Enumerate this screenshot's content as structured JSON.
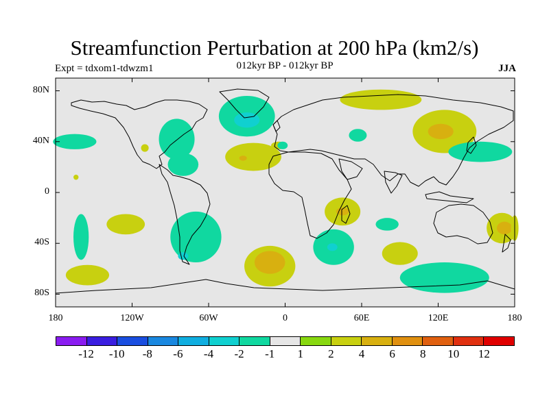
{
  "title": "Streamfunction Perturbation at 200 hPa (km2/s)",
  "left_label": "Expt = tdxom1-tdwzm1",
  "center_label": "012kyr BP - 012kyr BP",
  "right_label": "JJA",
  "chart_data": {
    "type": "contour-map",
    "variable": "Streamfunction Perturbation",
    "level": "200 hPa",
    "units": "km2/s",
    "season": "JJA",
    "lon_range": [
      -180,
      180
    ],
    "lat_range": [
      -90,
      90
    ],
    "x_ticks": [
      {
        "label": "180",
        "lon": -180
      },
      {
        "label": "120W",
        "lon": -120
      },
      {
        "label": "60W",
        "lon": -60
      },
      {
        "label": "0",
        "lon": 0
      },
      {
        "label": "60E",
        "lon": 60
      },
      {
        "label": "120E",
        "lon": 120
      },
      {
        "label": "180",
        "lon": 180
      }
    ],
    "y_ticks": [
      {
        "label": "80N",
        "lat": 80
      },
      {
        "label": "40N",
        "lat": 40
      },
      {
        "label": "0",
        "lat": 0
      },
      {
        "label": "40S",
        "lat": -40
      },
      {
        "label": "80S",
        "lat": -80
      }
    ],
    "colorbar": {
      "levels": [
        "-12",
        "-10",
        "-8",
        "-6",
        "-4",
        "-2",
        "-1",
        "1",
        "2",
        "4",
        "6",
        "8",
        "10",
        "12"
      ],
      "colors": [
        "#8a1cf0",
        "#3a1ee0",
        "#1a4ee0",
        "#1a88e0",
        "#10aee0",
        "#10d0d0",
        "#10d8a0",
        "#e6e6e6",
        "#88d810",
        "#c8d010",
        "#d8b010",
        "#e09010",
        "#e06010",
        "#e03010",
        "#e00000"
      ]
    },
    "features": [
      {
        "name": "north-atlantic-low",
        "lon": -30,
        "lat": 60,
        "rx": 22,
        "ry": 16,
        "level": -2
      },
      {
        "name": "north-atlantic-low-core",
        "lon": -30,
        "lat": 57,
        "rx": 10,
        "ry": 6,
        "level": -4
      },
      {
        "name": "north-america-low",
        "lon": -85,
        "lat": 42,
        "rx": 14,
        "ry": 16,
        "level": -2
      },
      {
        "name": "gulf-of-mexico-low",
        "lon": -80,
        "lat": 22,
        "rx": 12,
        "ry": 9,
        "level": -2
      },
      {
        "name": "north-pacific-low",
        "lon": -165,
        "lat": 40,
        "rx": 17,
        "ry": 6,
        "level": -2
      },
      {
        "name": "atlantic-high",
        "lon": -25,
        "lat": 28,
        "rx": 22,
        "ry": 11,
        "level": 2
      },
      {
        "name": "atlantic-high-core",
        "lon": -33,
        "lat": 27,
        "rx": 3,
        "ry": 2,
        "level": 4
      },
      {
        "name": "arctic-high",
        "lon": 75,
        "lat": 73,
        "rx": 32,
        "ry": 8,
        "level": 2
      },
      {
        "name": "east-asia-high",
        "lon": 125,
        "lat": 48,
        "rx": 25,
        "ry": 17,
        "level": 2
      },
      {
        "name": "east-asia-high-core",
        "lon": 122,
        "lat": 48,
        "rx": 10,
        "ry": 6,
        "level": 4
      },
      {
        "name": "caspian-low",
        "lon": 57,
        "lat": 45,
        "rx": 7,
        "ry": 5,
        "level": -2
      },
      {
        "name": "west-pacific-low",
        "lon": 153,
        "lat": 32,
        "rx": 25,
        "ry": 8,
        "level": -2
      },
      {
        "name": "indian-ocean-high",
        "lon": 45,
        "lat": -15,
        "rx": 14,
        "ry": 11,
        "level": 2
      },
      {
        "name": "indian-ocean-high-core",
        "lon": 45,
        "lat": -15,
        "rx": 5,
        "ry": 3,
        "level": 4
      },
      {
        "name": "south-indian-low",
        "lon": 80,
        "lat": -25,
        "rx": 9,
        "ry": 5,
        "level": -2
      },
      {
        "name": "south-african-low",
        "lon": 38,
        "lat": -43,
        "rx": 16,
        "ry": 14,
        "level": -2
      },
      {
        "name": "south-african-low-core",
        "lon": 37,
        "lat": -43,
        "rx": 4,
        "ry": 3,
        "level": -4
      },
      {
        "name": "south-indian-high",
        "lon": 90,
        "lat": -48,
        "rx": 14,
        "ry": 9,
        "level": 2
      },
      {
        "name": "southern-ocean-low",
        "lon": 125,
        "lat": -67,
        "rx": 35,
        "ry": 12,
        "level": -2
      },
      {
        "name": "south-atlantic-high",
        "lon": -12,
        "lat": -58,
        "rx": 20,
        "ry": 16,
        "level": 2
      },
      {
        "name": "south-atlantic-high-core",
        "lon": -12,
        "lat": -55,
        "rx": 12,
        "ry": 9,
        "level": 4
      },
      {
        "name": "south-america-low",
        "lon": -70,
        "lat": -35,
        "rx": 20,
        "ry": 20,
        "level": -2
      },
      {
        "name": "south-american-low-core",
        "lon": -80,
        "lat": -50,
        "rx": 4,
        "ry": 3,
        "level": -4
      },
      {
        "name": "south-pacific-high",
        "lon": -125,
        "lat": -25,
        "rx": 15,
        "ry": 8,
        "level": 2
      },
      {
        "name": "south-pacific-low",
        "lon": -160,
        "lat": -35,
        "rx": 6,
        "ry": 18,
        "level": -2
      },
      {
        "name": "southeast-pacific-high",
        "lon": -155,
        "lat": -65,
        "rx": 17,
        "ry": 8,
        "level": 2
      },
      {
        "name": "australia-high",
        "lon": 170,
        "lat": -28,
        "rx": 12,
        "ry": 12,
        "level": 2
      },
      {
        "name": "australia-high-core",
        "lon": 172,
        "lat": -28,
        "rx": 6,
        "ry": 5,
        "level": 4
      },
      {
        "name": "central-pacific-high",
        "lon": 180,
        "lat": -28,
        "rx": 3,
        "ry": 10,
        "level": 2
      },
      {
        "name": "mexico-high",
        "lon": -110,
        "lat": 35,
        "rx": 3,
        "ry": 3,
        "level": 2
      },
      {
        "name": "north-pacific-high",
        "lon": -164,
        "lat": 12,
        "rx": 2,
        "ry": 2,
        "level": 2
      },
      {
        "name": "mediterranean-high",
        "lon": -5,
        "lat": 37,
        "rx": 6,
        "ry": 3,
        "level": 2
      },
      {
        "name": "north-africa-low",
        "lon": -2,
        "lat": 37,
        "rx": 4,
        "ry": 3,
        "level": -2
      }
    ]
  }
}
